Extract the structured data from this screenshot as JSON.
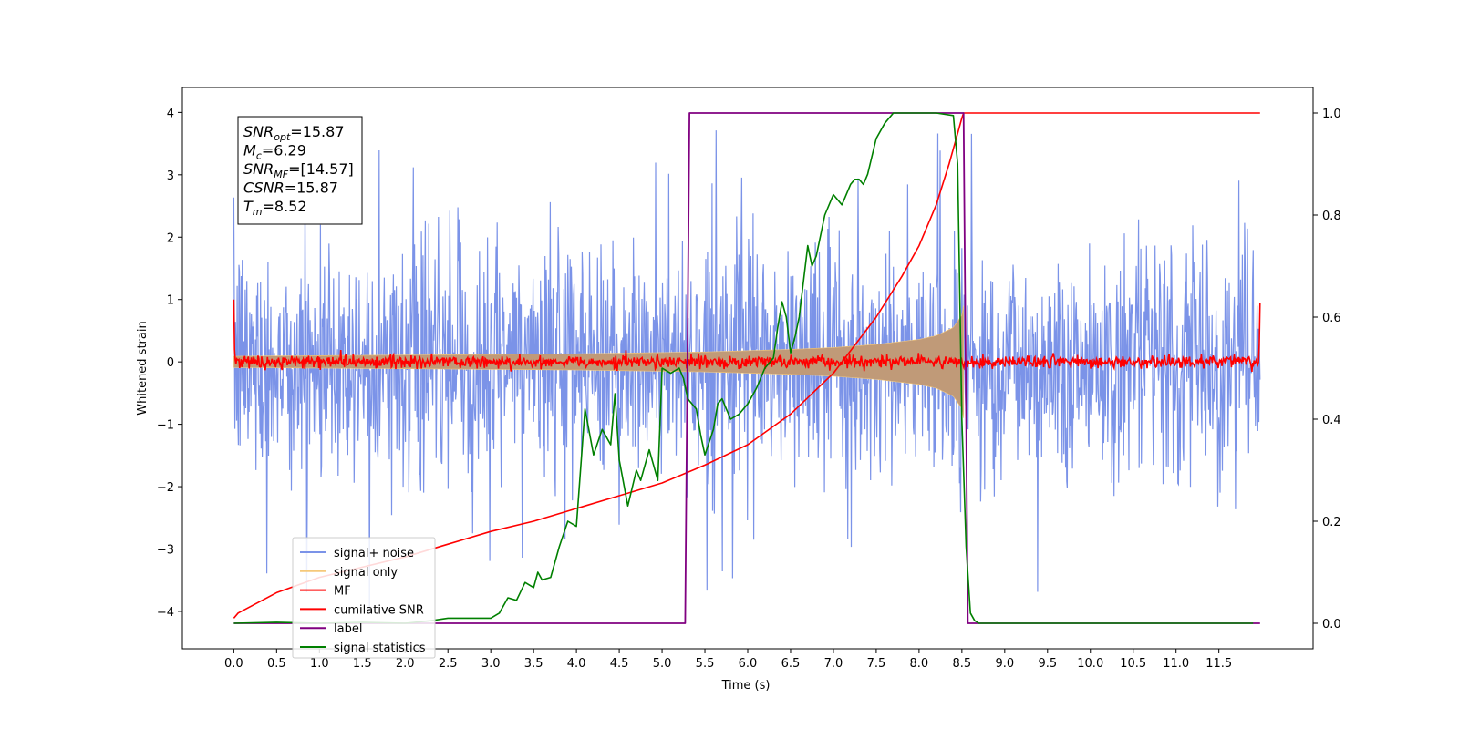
{
  "chart_data": {
    "type": "line",
    "xlabel": "Time (s)",
    "ylabel": "Whitened strain",
    "xlim": [
      -0.6,
      12.6
    ],
    "ylim": [
      -4.6,
      4.4
    ],
    "y2lim": [
      -0.05,
      1.05
    ],
    "x_ticks": [
      0.0,
      0.5,
      1.0,
      1.5,
      2.0,
      2.5,
      3.0,
      3.5,
      4.0,
      4.5,
      5.0,
      5.5,
      6.0,
      6.5,
      7.0,
      7.5,
      8.0,
      8.5,
      9.0,
      9.5,
      10.0,
      10.5,
      11.0,
      11.5
    ],
    "x_tick_labels": [
      "0.0",
      "0.5",
      "1.0",
      "1.5",
      "2.0",
      "2.5",
      "3.0",
      "3.5",
      "4.0",
      "4.5",
      "5.0",
      "5.5",
      "6.0",
      "6.5",
      "7.0",
      "7.5",
      "8.0",
      "8.5",
      "9.0",
      "9.5",
      "10.0",
      "10.5",
      "11.0",
      "11.5"
    ],
    "y_ticks": [
      -4,
      -3,
      -2,
      -1,
      0,
      1,
      2,
      3,
      4
    ],
    "y_tick_labels": [
      "−4",
      "−3",
      "−2",
      "−1",
      "0",
      "1",
      "2",
      "3",
      "4"
    ],
    "y2_ticks": [
      0.0,
      0.2,
      0.4,
      0.6,
      0.8,
      1.0
    ],
    "y2_tick_labels": [
      "0.0",
      "0.2",
      "0.4",
      "0.6",
      "0.8",
      "1.0"
    ],
    "grid": false,
    "legend_position": "lower-left",
    "colors": {
      "signal_noise": "#7b93e8",
      "signal_only": "#f5c97a",
      "overlap": "#c09a78",
      "mf": "#ff0000",
      "cum_snr": "#ff0000",
      "label": "#800080",
      "stats": "#008000"
    },
    "series": [
      {
        "name": "signal+ noise",
        "axis": "left",
        "description_range": {
          "x": [
            0,
            11.98
          ],
          "typical_amplitude": 1.6,
          "peak_min": -4.15,
          "peak_max": 4.0
        }
      },
      {
        "name": "signal only",
        "axis": "left",
        "envelope": {
          "x": [
            0,
            1,
            2,
            3,
            4,
            5,
            5.5,
            6,
            6.5,
            7,
            7.5,
            8,
            8.2,
            8.4,
            8.5,
            8.52
          ],
          "amplitude": [
            0.09,
            0.1,
            0.11,
            0.12,
            0.13,
            0.15,
            0.16,
            0.18,
            0.2,
            0.23,
            0.28,
            0.36,
            0.42,
            0.55,
            0.75,
            0.9
          ]
        }
      },
      {
        "name": "MF",
        "axis": "left",
        "description_range": {
          "x": [
            0,
            11.98
          ],
          "typical_amplitude": 0.1,
          "start_value": 1.0,
          "end_value": 0.95
        }
      },
      {
        "name": "cumilative SNR",
        "axis": "right",
        "x": [
          0,
          0.05,
          0.5,
          1,
          1.5,
          2,
          2.5,
          3,
          3.5,
          4,
          4.5,
          5,
          5.5,
          6,
          6.5,
          7,
          7.5,
          7.8,
          8.0,
          8.2,
          8.35,
          8.45,
          8.5,
          8.52,
          8.6,
          11.98
        ],
        "y": [
          0.01,
          0.02,
          0.06,
          0.09,
          0.11,
          0.13,
          0.155,
          0.18,
          0.2,
          0.225,
          0.25,
          0.275,
          0.31,
          0.35,
          0.41,
          0.49,
          0.6,
          0.68,
          0.74,
          0.82,
          0.9,
          0.96,
          0.99,
          1.0,
          1.0,
          1.0
        ]
      },
      {
        "name": "label",
        "axis": "right",
        "x": [
          0,
          5.27,
          5.32,
          8.52,
          8.57,
          11.98
        ],
        "y": [
          0,
          0,
          1,
          1,
          0,
          0
        ]
      },
      {
        "name": "signal statistics",
        "axis": "right",
        "x": [
          0,
          0.5,
          1.0,
          1.5,
          2.0,
          2.3,
          2.5,
          3.0,
          3.1,
          3.2,
          3.3,
          3.4,
          3.5,
          3.55,
          3.6,
          3.7,
          3.8,
          3.9,
          4.0,
          4.1,
          4.2,
          4.3,
          4.4,
          4.45,
          4.5,
          4.6,
          4.7,
          4.75,
          4.85,
          4.95,
          5.0,
          5.1,
          5.2,
          5.25,
          5.3,
          5.4,
          5.45,
          5.5,
          5.6,
          5.65,
          5.7,
          5.8,
          5.9,
          6.0,
          6.1,
          6.2,
          6.3,
          6.35,
          6.4,
          6.45,
          6.5,
          6.55,
          6.6,
          6.7,
          6.75,
          6.8,
          6.9,
          7.0,
          7.1,
          7.2,
          7.25,
          7.3,
          7.35,
          7.4,
          7.5,
          7.6,
          7.7,
          7.8,
          7.9,
          8.0,
          8.2,
          8.4,
          8.45,
          8.5,
          8.55,
          8.6,
          8.65,
          8.7,
          8.8,
          9.0,
          11.9
        ],
        "y": [
          0.0,
          0.002,
          0.0,
          0.002,
          0.0,
          0.005,
          0.01,
          0.01,
          0.02,
          0.05,
          0.045,
          0.08,
          0.07,
          0.1,
          0.085,
          0.09,
          0.15,
          0.2,
          0.19,
          0.42,
          0.33,
          0.38,
          0.35,
          0.45,
          0.32,
          0.23,
          0.3,
          0.28,
          0.34,
          0.28,
          0.5,
          0.49,
          0.5,
          0.48,
          0.44,
          0.42,
          0.37,
          0.33,
          0.38,
          0.43,
          0.44,
          0.4,
          0.41,
          0.43,
          0.46,
          0.5,
          0.52,
          0.58,
          0.63,
          0.6,
          0.53,
          0.56,
          0.6,
          0.74,
          0.7,
          0.72,
          0.8,
          0.84,
          0.82,
          0.86,
          0.87,
          0.87,
          0.86,
          0.88,
          0.95,
          0.98,
          1.0,
          1.0,
          1.0,
          1.0,
          1.0,
          0.995,
          0.9,
          0.4,
          0.15,
          0.02,
          0.005,
          0.0,
          0.0,
          0.0,
          0.0
        ]
      }
    ],
    "annotation": {
      "lines": [
        {
          "name": "snr-opt",
          "base": "SNR",
          "sub": "opt",
          "value": "=15.87"
        },
        {
          "name": "mc",
          "base": "M",
          "sub": "c",
          "value": "=6.29"
        },
        {
          "name": "snr-mf",
          "base": "SNR",
          "sub": "MF",
          "value": "=[14.57]"
        },
        {
          "name": "csnr",
          "base": "CSNR",
          "sub": "",
          "value": "=15.87"
        },
        {
          "name": "tm",
          "base": "T",
          "sub": "m",
          "value": "=8.52"
        }
      ]
    }
  }
}
